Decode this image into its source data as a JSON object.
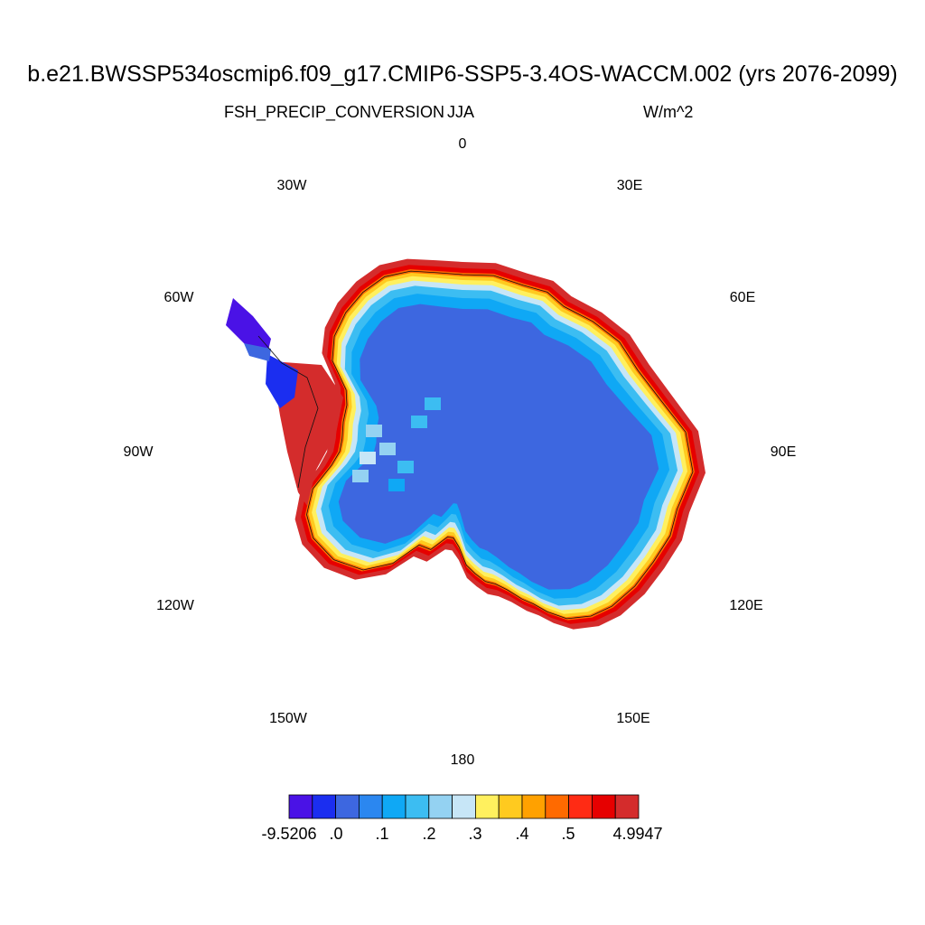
{
  "title": "b.e21.BWSSP534oscmip6.f09_g17.CMIP6-SSP5-3.4OS-WACCM.002 (yrs 2076-2099)",
  "variable": "FSH_PRECIP_CONVERSION",
  "season": "JJA",
  "units": "W/m^2",
  "longitude_labels": {
    "lon_0": "0",
    "lon_30E": "30E",
    "lon_60E": "60E",
    "lon_90E": "90E",
    "lon_120E": "120E",
    "lon_150E": "150E",
    "lon_180": "180",
    "lon_150W": "150W",
    "lon_120W": "120W",
    "lon_90W": "90W",
    "lon_60W": "60W",
    "lon_30W": "30W"
  },
  "colorbar": {
    "colors": [
      "#4a12e6",
      "#1b2ef0",
      "#3d67e0",
      "#2b87f0",
      "#0fa8f5",
      "#3cbdf2",
      "#94d2f2",
      "#c7e6f7",
      "#fff05e",
      "#ffca1f",
      "#ffa100",
      "#ff6a00",
      "#ff2b14",
      "#e60000",
      "#d42c2c"
    ],
    "labels": {
      "min": "-9.5206",
      "l1": ".0",
      "l2": ".1",
      "l3": ".2",
      "l4": ".3",
      "l5": ".4",
      "l6": ".5",
      "max": "4.9947"
    }
  },
  "chart_data": {
    "type": "heatmap",
    "title": "b.e21.BWSSP534oscmip6.f09_g17.CMIP6-SSP5-3.4OS-WACCM.002 (yrs 2076-2099)",
    "left_subtitle": "FSH_PRECIP_CONVERSION",
    "center_subtitle": "JJA",
    "right_subtitle": "W/m^2",
    "projection": "south-polar-stereographic",
    "data_range": [
      -9.5206,
      4.9947
    ],
    "interior_value_approx": 0.0,
    "coastal_value_approx": 0.5,
    "peninsula_tip_value_approx": -9.5,
    "contour_levels": [
      -9.5206,
      0.0,
      0.05,
      0.1,
      0.15,
      0.2,
      0.25,
      0.3,
      0.35,
      0.4,
      0.45,
      0.5,
      0.55,
      0.6,
      4.9947
    ]
  }
}
